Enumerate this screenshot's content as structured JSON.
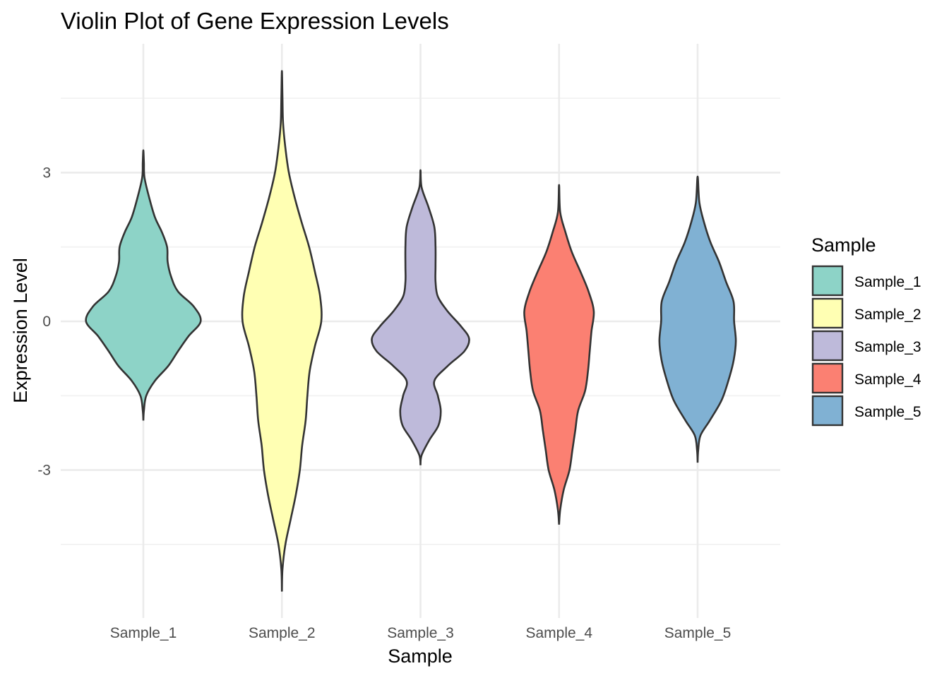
{
  "chart_data": {
    "type": "violin",
    "title": "Violin Plot of Gene Expression Levels",
    "xlabel": "Sample",
    "ylabel": "Expression Level",
    "categories": [
      "Sample_1",
      "Sample_2",
      "Sample_3",
      "Sample_4",
      "Sample_5"
    ],
    "ylim": [
      -5.9,
      5.5
    ],
    "yticks": [
      -3,
      0,
      3
    ],
    "ytick_labels": [
      "-3",
      "0",
      "3"
    ],
    "grid": true,
    "legend": {
      "title": "Sample",
      "position": "right",
      "entries": [
        "Sample_1",
        "Sample_2",
        "Sample_3",
        "Sample_4",
        "Sample_5"
      ]
    },
    "series": [
      {
        "category": "Sample_1",
        "color": "#8DD3C7",
        "min": -2.0,
        "max": 3.45,
        "density_profile": [
          [
            -2.0,
            0.0
          ],
          [
            -1.8,
            0.01
          ],
          [
            -1.5,
            0.05
          ],
          [
            -1.2,
            0.2
          ],
          [
            -0.9,
            0.43
          ],
          [
            -0.6,
            0.6
          ],
          [
            -0.3,
            0.78
          ],
          [
            0.0,
            0.99
          ],
          [
            0.3,
            0.87
          ],
          [
            0.6,
            0.6
          ],
          [
            0.9,
            0.48
          ],
          [
            1.2,
            0.42
          ],
          [
            1.5,
            0.41
          ],
          [
            1.8,
            0.32
          ],
          [
            2.1,
            0.2
          ],
          [
            2.5,
            0.1
          ],
          [
            2.9,
            0.02
          ],
          [
            3.2,
            0.01
          ],
          [
            3.45,
            0.0
          ]
        ]
      },
      {
        "category": "Sample_2",
        "color": "#FFFFB3",
        "min": -5.45,
        "max": 5.05,
        "density_profile": [
          [
            -5.45,
            0.0
          ],
          [
            -5.0,
            0.01
          ],
          [
            -4.5,
            0.06
          ],
          [
            -4.0,
            0.15
          ],
          [
            -3.5,
            0.24
          ],
          [
            -3.0,
            0.31
          ],
          [
            -2.5,
            0.35
          ],
          [
            -2.0,
            0.41
          ],
          [
            -1.5,
            0.44
          ],
          [
            -1.0,
            0.48
          ],
          [
            -0.5,
            0.57
          ],
          [
            0.0,
            0.68
          ],
          [
            0.5,
            0.66
          ],
          [
            1.0,
            0.57
          ],
          [
            1.5,
            0.47
          ],
          [
            2.0,
            0.34
          ],
          [
            2.5,
            0.22
          ],
          [
            3.0,
            0.12
          ],
          [
            3.5,
            0.06
          ],
          [
            4.0,
            0.02
          ],
          [
            4.5,
            0.01
          ],
          [
            5.05,
            0.0
          ]
        ]
      },
      {
        "category": "Sample_3",
        "color": "#BEBADA",
        "min": -2.9,
        "max": 3.05,
        "density_profile": [
          [
            -2.9,
            0.0
          ],
          [
            -2.7,
            0.02
          ],
          [
            -2.4,
            0.15
          ],
          [
            -2.1,
            0.31
          ],
          [
            -1.8,
            0.35
          ],
          [
            -1.5,
            0.3
          ],
          [
            -1.2,
            0.24
          ],
          [
            -0.9,
            0.47
          ],
          [
            -0.6,
            0.76
          ],
          [
            -0.35,
            0.84
          ],
          [
            -0.1,
            0.7
          ],
          [
            0.2,
            0.47
          ],
          [
            0.5,
            0.3
          ],
          [
            0.8,
            0.26
          ],
          [
            1.1,
            0.26
          ],
          [
            1.5,
            0.26
          ],
          [
            1.9,
            0.24
          ],
          [
            2.3,
            0.14
          ],
          [
            2.7,
            0.02
          ],
          [
            3.05,
            0.0
          ]
        ]
      },
      {
        "category": "Sample_4",
        "color": "#FB8072",
        "min": -4.1,
        "max": 2.75,
        "density_profile": [
          [
            -4.1,
            0.0
          ],
          [
            -3.8,
            0.02
          ],
          [
            -3.4,
            0.08
          ],
          [
            -3.0,
            0.18
          ],
          [
            -2.6,
            0.23
          ],
          [
            -2.2,
            0.28
          ],
          [
            -1.8,
            0.33
          ],
          [
            -1.4,
            0.45
          ],
          [
            -1.0,
            0.5
          ],
          [
            -0.6,
            0.53
          ],
          [
            -0.2,
            0.56
          ],
          [
            0.2,
            0.6
          ],
          [
            0.6,
            0.51
          ],
          [
            1.0,
            0.37
          ],
          [
            1.4,
            0.22
          ],
          [
            1.8,
            0.11
          ],
          [
            2.2,
            0.02
          ],
          [
            2.75,
            0.0
          ]
        ]
      },
      {
        "category": "Sample_5",
        "color": "#80B1D3",
        "min": -2.85,
        "max": 2.92,
        "density_profile": [
          [
            -2.85,
            0.0
          ],
          [
            -2.6,
            0.01
          ],
          [
            -2.3,
            0.05
          ],
          [
            -2.0,
            0.21
          ],
          [
            -1.6,
            0.41
          ],
          [
            -1.2,
            0.53
          ],
          [
            -0.8,
            0.62
          ],
          [
            -0.4,
            0.66
          ],
          [
            0.0,
            0.63
          ],
          [
            0.4,
            0.62
          ],
          [
            0.8,
            0.49
          ],
          [
            1.2,
            0.37
          ],
          [
            1.6,
            0.22
          ],
          [
            2.0,
            0.11
          ],
          [
            2.4,
            0.03
          ],
          [
            2.92,
            0.0
          ]
        ]
      }
    ]
  }
}
